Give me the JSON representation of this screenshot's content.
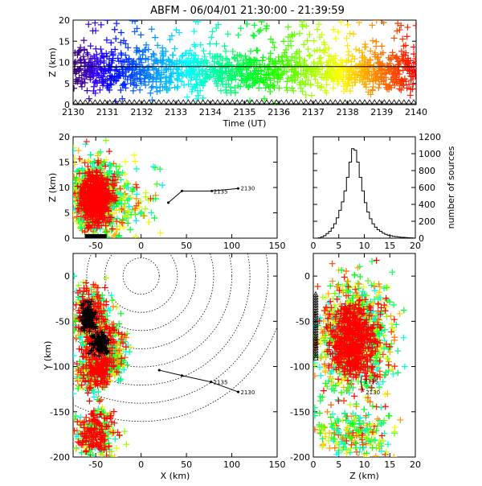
{
  "title": "ABFM - 06/04/01 21:30:00 - 21:39:59",
  "colors": {
    "background": "#ffffff",
    "axis": "#000000",
    "rainbow": [
      "#000000",
      "#4b0082",
      "#0000ff",
      "#00bfff",
      "#00ff00",
      "#ffff00",
      "#ff8c00",
      "#ff0000"
    ]
  },
  "chart_data": [
    {
      "id": "time-height",
      "type": "scatter",
      "xlabel": "Time (UT)",
      "ylabel": "Z (km)",
      "xlim": [
        2130,
        2140
      ],
      "ylim": [
        0,
        20
      ],
      "xticks": [
        2130,
        2131,
        2132,
        2133,
        2134,
        2135,
        2136,
        2137,
        2138,
        2139,
        2140
      ],
      "yticks": [
        0,
        5,
        10,
        15,
        20
      ],
      "color_by": "time",
      "horizontal_line_z": 9,
      "source_profile": {
        "z_center": 8,
        "z_spread": 2.5
      },
      "station_markers": "triangles along z=0"
    },
    {
      "id": "x-z",
      "type": "scatter",
      "xlabel": "",
      "ylabel": "Z (km)",
      "xlim": [
        -75,
        150
      ],
      "ylim": [
        0,
        20
      ],
      "xticks": [
        -50,
        0,
        50,
        100,
        150
      ],
      "yticks": [
        0,
        5,
        10,
        15,
        20
      ],
      "cluster": {
        "x_center": -50,
        "z_center": 8
      },
      "trace_points": [
        {
          "x": 107,
          "z": 9.8,
          "label": "2130"
        },
        {
          "x": 78,
          "z": 9.3,
          "label": "2135"
        },
        {
          "x": 45,
          "z": 9.3
        },
        {
          "x": 30,
          "z": 7
        }
      ],
      "trace_labels": [
        "2130",
        "2135"
      ]
    },
    {
      "id": "histogram",
      "type": "area",
      "xlabel": "",
      "ylabel": "number of sources",
      "xlim": [
        0,
        20
      ],
      "ylim": [
        0,
        1200
      ],
      "xticks": [
        0,
        5,
        10,
        15,
        20
      ],
      "yticks": [
        0,
        200,
        400,
        600,
        800,
        1000,
        1200
      ],
      "bin_width_km": 0.5,
      "counts": [
        0,
        0,
        5,
        15,
        30,
        55,
        80,
        120,
        170,
        240,
        330,
        430,
        560,
        720,
        900,
        1060,
        1040,
        900,
        720,
        560,
        420,
        310,
        230,
        170,
        130,
        100,
        80,
        60,
        45,
        35,
        28,
        22,
        18,
        14,
        11,
        9,
        7,
        5,
        3,
        1
      ]
    },
    {
      "id": "x-y",
      "type": "scatter",
      "xlabel": "X (km)",
      "ylabel": "Y (km)",
      "xlim": [
        -75,
        150
      ],
      "ylim": [
        -200,
        25
      ],
      "xticks": [
        -50,
        0,
        50,
        100,
        150
      ],
      "yticks": [
        -200,
        -150,
        -100,
        -50,
        0
      ],
      "range_rings_center": [
        0,
        0
      ],
      "range_rings_radii_km": [
        20,
        40,
        60,
        80,
        100,
        120,
        140,
        160
      ],
      "trace_points": [
        {
          "x": 107,
          "y": -128,
          "label": "2130"
        },
        {
          "x": 77,
          "y": -117,
          "label": "2135"
        },
        {
          "x": 45,
          "y": -110
        },
        {
          "x": 20,
          "y": -104
        }
      ],
      "trace_labels": [
        "2130",
        "2135"
      ]
    },
    {
      "id": "z-y",
      "type": "scatter",
      "xlabel": "Z (km)",
      "ylabel": "",
      "xlim": [
        0,
        20
      ],
      "ylim": [
        -200,
        25
      ],
      "xticks": [
        0,
        5,
        10,
        15,
        20
      ],
      "yticks": [
        -200,
        -150,
        -100,
        -50,
        0
      ],
      "trace_labels": [
        "2135",
        "2130"
      ]
    }
  ]
}
